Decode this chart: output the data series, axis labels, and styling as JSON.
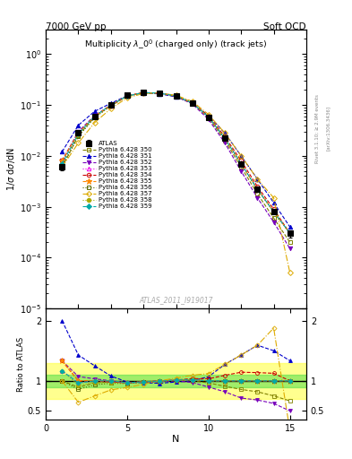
{
  "title_top_left": "7000 GeV pp",
  "title_top_right": "Soft QCD",
  "title_main": "Multiplicity $\\lambda\\_0^0$ (charged only) (track jets)",
  "xlabel": "N",
  "ylabel_main": "1/σ dσ/dN",
  "ylabel_ratio": "Ratio to ATLAS",
  "ref_label": "ATLAS",
  "watermark": "ATLAS_2011_I919017",
  "x_data": [
    1,
    2,
    3,
    4,
    5,
    6,
    7,
    8,
    9,
    10,
    11,
    12,
    13,
    14,
    15
  ],
  "atlas_y": [
    0.006,
    0.028,
    0.06,
    0.1,
    0.155,
    0.178,
    0.172,
    0.148,
    0.108,
    0.058,
    0.022,
    0.007,
    0.0022,
    0.0008,
    0.0003
  ],
  "atlas_yerr": [
    0.0008,
    0.002,
    0.003,
    0.004,
    0.005,
    0.005,
    0.005,
    0.004,
    0.003,
    0.002,
    0.001,
    0.0005,
    0.0002,
    0.0001,
    5e-05
  ],
  "series": [
    {
      "label": "Pythia 6.428 350",
      "color": "#808000",
      "linestyle": "--",
      "marker": "s",
      "markerfilled": false,
      "y": [
        0.006,
        0.025,
        0.058,
        0.098,
        0.15,
        0.175,
        0.17,
        0.148,
        0.108,
        0.056,
        0.02,
        0.006,
        0.0018,
        0.0006,
        0.0002
      ]
    },
    {
      "label": "Pythia 6.428 351",
      "color": "#0000cc",
      "linestyle": "--",
      "marker": "^",
      "markerfilled": true,
      "y": [
        0.012,
        0.04,
        0.075,
        0.108,
        0.152,
        0.172,
        0.165,
        0.145,
        0.108,
        0.062,
        0.028,
        0.01,
        0.0035,
        0.0012,
        0.0004
      ]
    },
    {
      "label": "Pythia 6.428 352",
      "color": "#7700bb",
      "linestyle": "--",
      "marker": "v",
      "markerfilled": true,
      "y": [
        0.008,
        0.03,
        0.062,
        0.1,
        0.15,
        0.174,
        0.17,
        0.148,
        0.105,
        0.052,
        0.018,
        0.005,
        0.0015,
        0.0005,
        0.00015
      ]
    },
    {
      "label": "Pythia 6.428 353",
      "color": "#ee00ee",
      "linestyle": ":",
      "marker": "^",
      "markerfilled": false,
      "y": [
        0.007,
        0.027,
        0.06,
        0.098,
        0.15,
        0.175,
        0.171,
        0.15,
        0.11,
        0.058,
        0.022,
        0.007,
        0.0022,
        0.0008,
        0.0003
      ]
    },
    {
      "label": "Pythia 6.428 354",
      "color": "#cc0000",
      "linestyle": "--",
      "marker": "o",
      "markerfilled": false,
      "y": [
        0.008,
        0.028,
        0.06,
        0.098,
        0.15,
        0.175,
        0.172,
        0.15,
        0.112,
        0.06,
        0.024,
        0.008,
        0.0025,
        0.0009,
        0.0003
      ]
    },
    {
      "label": "Pythia 6.428 355",
      "color": "#ff8800",
      "linestyle": "--",
      "marker": "*",
      "markerfilled": true,
      "y": [
        0.008,
        0.028,
        0.06,
        0.1,
        0.15,
        0.175,
        0.171,
        0.15,
        0.11,
        0.058,
        0.022,
        0.007,
        0.0022,
        0.0008,
        0.0003
      ]
    },
    {
      "label": "Pythia 6.428 356",
      "color": "#556600",
      "linestyle": ":",
      "marker": "s",
      "markerfilled": false,
      "y": [
        0.006,
        0.024,
        0.056,
        0.096,
        0.148,
        0.174,
        0.171,
        0.15,
        0.11,
        0.058,
        0.022,
        0.007,
        0.0022,
        0.0008,
        0.0003
      ]
    },
    {
      "label": "Pythia 6.428 357",
      "color": "#ddaa00",
      "linestyle": "-.",
      "marker": "D",
      "markerfilled": false,
      "y": [
        0.006,
        0.018,
        0.045,
        0.085,
        0.138,
        0.168,
        0.172,
        0.155,
        0.118,
        0.065,
        0.028,
        0.01,
        0.0035,
        0.0015,
        5e-05
      ]
    },
    {
      "label": "Pythia 6.428 358",
      "color": "#aaaa00",
      "linestyle": ":",
      "marker": "o",
      "markerfilled": true,
      "y": [
        0.007,
        0.026,
        0.058,
        0.097,
        0.149,
        0.174,
        0.171,
        0.15,
        0.11,
        0.058,
        0.022,
        0.007,
        0.0022,
        0.0008,
        0.0003
      ]
    },
    {
      "label": "Pythia 6.428 359",
      "color": "#00aaaa",
      "linestyle": "--",
      "marker": "D",
      "markerfilled": true,
      "y": [
        0.007,
        0.027,
        0.06,
        0.1,
        0.15,
        0.175,
        0.171,
        0.15,
        0.11,
        0.058,
        0.022,
        0.007,
        0.0022,
        0.0008,
        0.0003
      ]
    }
  ],
  "ratio_green_band": [
    0.9,
    1.1
  ],
  "ratio_yellow_band": [
    0.7,
    1.3
  ],
  "ylim_main": [
    1e-05,
    3.0
  ],
  "ylim_ratio": [
    0.35,
    2.2
  ],
  "xlim": [
    0,
    16
  ],
  "ratio_yticks": [
    0.5,
    1.0,
    2.0
  ],
  "ratio_yticklabels": [
    "0.5",
    "1",
    "2"
  ]
}
